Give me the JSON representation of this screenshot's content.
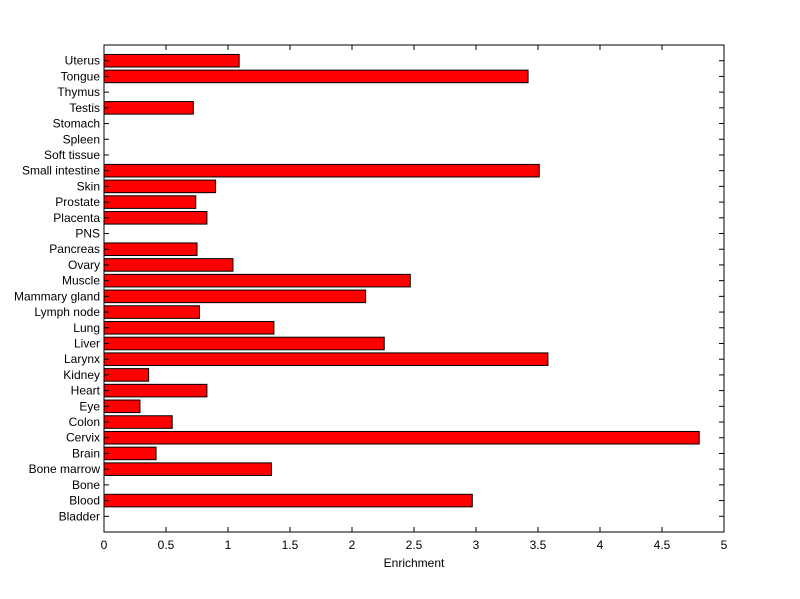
{
  "chart_data": {
    "type": "bar",
    "orientation": "horizontal",
    "title": "",
    "xlabel": "Enrichment",
    "ylabel": "",
    "xlim": [
      0,
      5
    ],
    "x_ticks": [
      0,
      0.5,
      1,
      1.5,
      2,
      2.5,
      3,
      3.5,
      4,
      4.5,
      5
    ],
    "x_tick_labels": [
      "0",
      "0.5",
      "1",
      "1.5",
      "2",
      "2.5",
      "3",
      "3.5",
      "4",
      "4.5",
      "5"
    ],
    "grid": false,
    "bar_color": "#ff0000",
    "bar_edge_color": "#000000",
    "categories": [
      "Bladder",
      "Blood",
      "Bone",
      "Bone marrow",
      "Brain",
      "Cervix",
      "Colon",
      "Eye",
      "Heart",
      "Kidney",
      "Larynx",
      "Liver",
      "Lung",
      "Lymph node",
      "Mammary gland",
      "Muscle",
      "Ovary",
      "Pancreas",
      "PNS",
      "Placenta",
      "Prostate",
      "Skin",
      "Small intestine",
      "Soft tissue",
      "Spleen",
      "Stomach",
      "Testis",
      "Thymus",
      "Tongue",
      "Uterus"
    ],
    "values": [
      0,
      2.97,
      0,
      1.35,
      0.42,
      4.8,
      0.55,
      0.29,
      0.83,
      0.36,
      3.58,
      2.26,
      1.37,
      0.77,
      2.11,
      2.47,
      1.04,
      0.75,
      0,
      0.83,
      0.74,
      0.9,
      3.51,
      0,
      0,
      0,
      0.72,
      0,
      3.42,
      1.09
    ]
  }
}
